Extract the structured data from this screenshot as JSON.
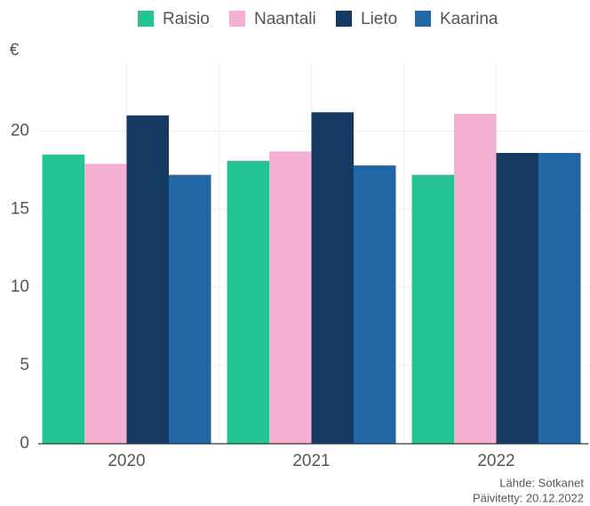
{
  "chart_data": {
    "type": "bar",
    "y_label": "€",
    "categories": [
      "2020",
      "2021",
      "2022"
    ],
    "series": [
      {
        "name": "Raisio",
        "color": "#26c495",
        "values": [
          18.5,
          18.1,
          17.2
        ]
      },
      {
        "name": "Naantali",
        "color": "#f5afd2",
        "values": [
          17.9,
          18.7,
          21.1
        ]
      },
      {
        "name": "Lieto",
        "color": "#143a63",
        "values": [
          21.0,
          21.2,
          18.6
        ]
      },
      {
        "name": "Kaarina",
        "color": "#2167a6",
        "values": [
          17.2,
          17.8,
          18.6
        ]
      }
    ],
    "ylim": [
      0,
      24.4
    ],
    "yticks": [
      0,
      5,
      10,
      15,
      20
    ],
    "grid": true,
    "source": "Lähde: Sotkanet",
    "updated": "Päivitetty: 20.12.2022"
  }
}
